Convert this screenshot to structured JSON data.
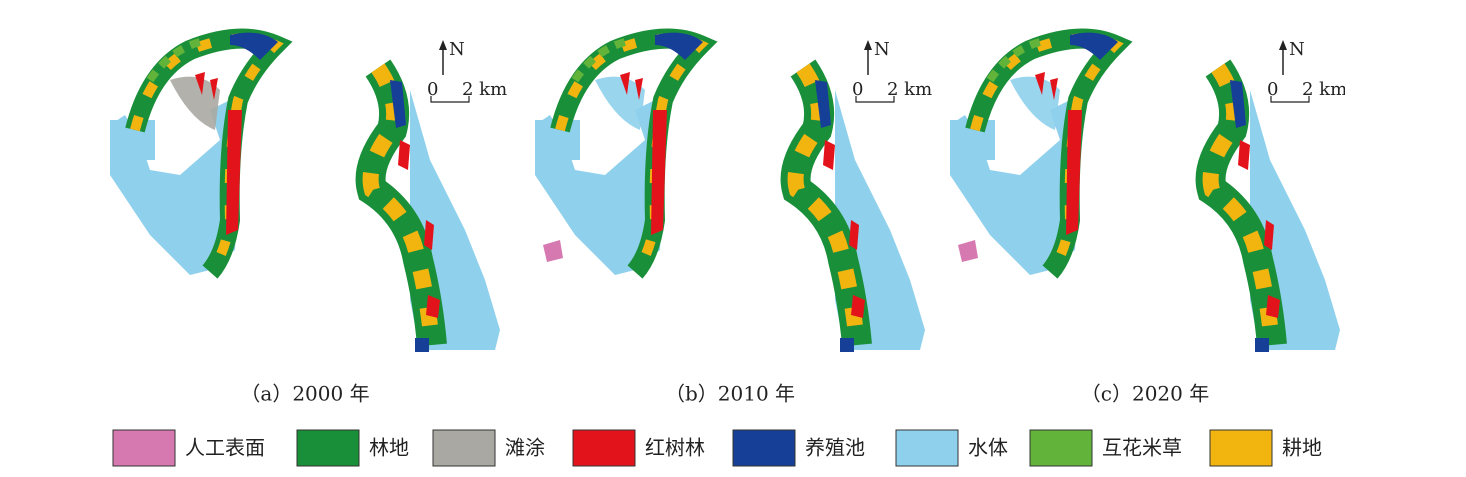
{
  "panels": [
    {
      "caption": "（a）2000 年",
      "north": "N",
      "scale_start": "0",
      "scale_end": "2 km"
    },
    {
      "caption": "（b）2010 年",
      "north": "N",
      "scale_start": "0",
      "scale_end": "2 km"
    },
    {
      "caption": "（c）2020 年",
      "north": "N",
      "scale_start": "0",
      "scale_end": "2 km"
    }
  ],
  "legend": [
    {
      "label": "人工表面",
      "color": "#d679b0"
    },
    {
      "label": "林地",
      "color": "#1a8f3a"
    },
    {
      "label": "滩涂",
      "color": "#aaa8a2"
    },
    {
      "label": "红树林",
      "color": "#e3131b"
    },
    {
      "label": "养殖池",
      "color": "#163f97"
    },
    {
      "label": "水体",
      "color": "#8fd0ec"
    },
    {
      "label": "互花米草",
      "color": "#62b33a"
    },
    {
      "label": "耕地",
      "color": "#f2b40f"
    }
  ]
}
